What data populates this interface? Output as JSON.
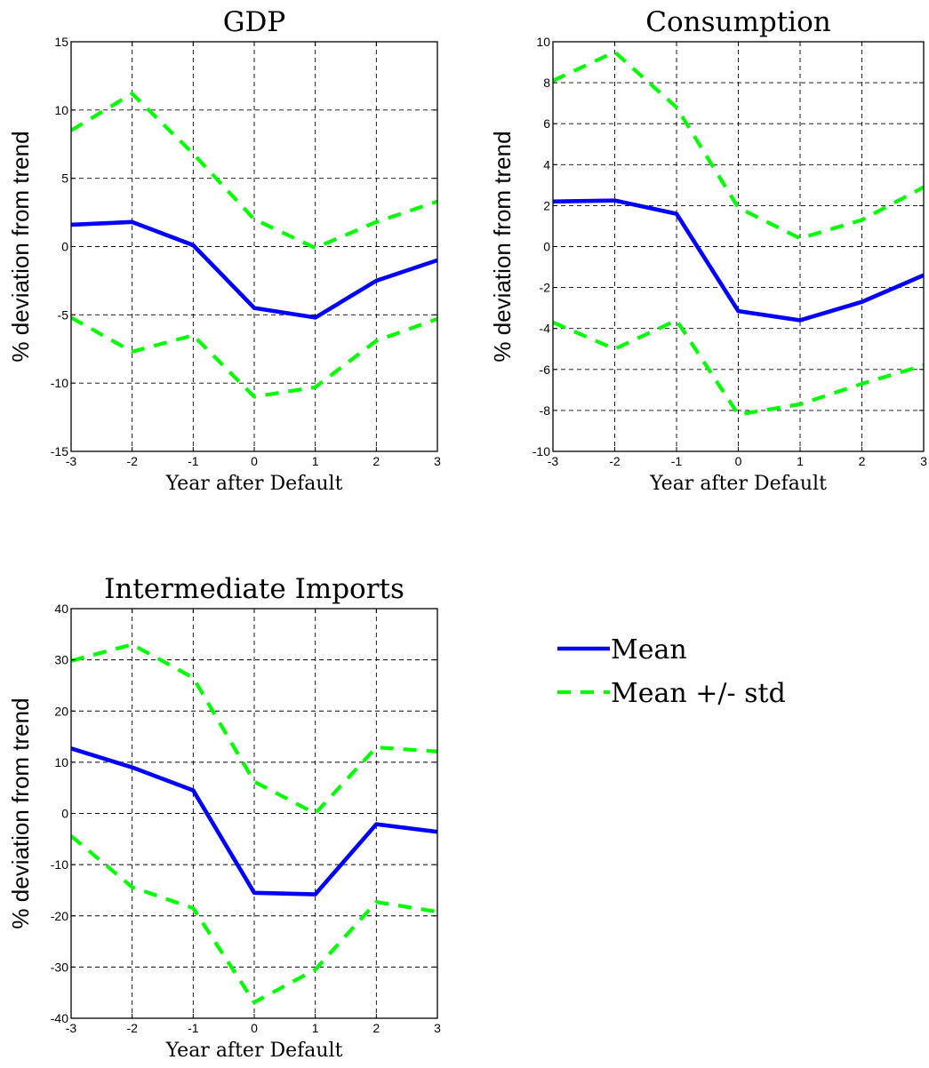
{
  "chart_data": [
    {
      "type": "line",
      "title": "GDP",
      "xlabel": "Year after Default",
      "ylabel": "% deviation from trend",
      "x": [
        -3,
        -2,
        -1,
        0,
        1,
        2,
        3
      ],
      "xlim": [
        -3,
        3
      ],
      "ylim": [
        -15,
        15
      ],
      "xticks": [
        "-3",
        "-2",
        "-1",
        "0",
        "1",
        "2",
        "3"
      ],
      "yticks": [
        "-15",
        "-10",
        "-5",
        "0",
        "5",
        "10",
        "15"
      ],
      "grid": true,
      "series": [
        {
          "name": "Mean",
          "style": "solid",
          "color": "#0000ff",
          "values": [
            1.6,
            1.8,
            0.1,
            -4.5,
            -5.2,
            -2.5,
            -1.0
          ]
        },
        {
          "name": "Mean +/- std",
          "style": "dashed",
          "color": "#00ff00",
          "values": [
            8.5,
            11.2,
            6.8,
            2.0,
            -0.1,
            1.8,
            3.3
          ]
        },
        {
          "name": "Mean +/- std",
          "style": "dashed",
          "color": "#00ff00",
          "values": [
            -5.2,
            -7.7,
            -6.5,
            -11.0,
            -10.3,
            -6.9,
            -5.3
          ]
        }
      ]
    },
    {
      "type": "line",
      "title": "Consumption",
      "xlabel": "Year after Default",
      "ylabel": "% deviation from trend",
      "x": [
        -3,
        -2,
        -1,
        0,
        1,
        2,
        3
      ],
      "xlim": [
        -3,
        3
      ],
      "ylim": [
        -10,
        10
      ],
      "xticks": [
        "-3",
        "-2",
        "-1",
        "0",
        "1",
        "2",
        "3"
      ],
      "yticks": [
        "-10",
        "-8",
        "-6",
        "-4",
        "-2",
        "0",
        "2",
        "4",
        "6",
        "8",
        "10"
      ],
      "grid": true,
      "series": [
        {
          "name": "Mean",
          "style": "solid",
          "color": "#0000ff",
          "values": [
            2.2,
            2.25,
            1.6,
            -3.15,
            -3.6,
            -2.7,
            -1.4
          ]
        },
        {
          "name": "Mean +/- std",
          "style": "dashed",
          "color": "#00ff00",
          "values": [
            8.1,
            9.5,
            6.8,
            1.9,
            0.4,
            1.3,
            2.9
          ]
        },
        {
          "name": "Mean +/- std",
          "style": "dashed",
          "color": "#00ff00",
          "values": [
            -3.7,
            -5.0,
            -3.6,
            -8.2,
            -7.7,
            -6.7,
            -5.8
          ]
        }
      ]
    },
    {
      "type": "line",
      "title": "Intermediate Imports",
      "xlabel": "Year after Default",
      "ylabel": "% deviation from trend",
      "x": [
        -3,
        -2,
        -1,
        0,
        1,
        2,
        3
      ],
      "xlim": [
        -3,
        3
      ],
      "ylim": [
        -40,
        40
      ],
      "xticks": [
        "-3",
        "-2",
        "-1",
        "0",
        "1",
        "2",
        "3"
      ],
      "yticks": [
        "-40",
        "-30",
        "-20",
        "-10",
        "0",
        "10",
        "20",
        "30",
        "40"
      ],
      "grid": true,
      "series": [
        {
          "name": "Mean",
          "style": "solid",
          "color": "#0000ff",
          "values": [
            12.7,
            9.0,
            4.5,
            -15.5,
            -15.8,
            -2.1,
            -3.6
          ]
        },
        {
          "name": "Mean +/- std",
          "style": "dashed",
          "color": "#00ff00",
          "values": [
            29.8,
            33.0,
            26.5,
            6.2,
            0.0,
            12.9,
            12.1
          ]
        },
        {
          "name": "Mean +/- std",
          "style": "dashed",
          "color": "#00ff00",
          "values": [
            -4.4,
            -14.4,
            -18.5,
            -36.9,
            -30.5,
            -17.3,
            -19.2
          ]
        }
      ]
    }
  ],
  "legend": {
    "placement": "right of bottom chart",
    "items": [
      {
        "label": "Mean",
        "style": "solid",
        "color": "#0000ff"
      },
      {
        "label": "Mean +/- std",
        "style": "dashed",
        "color": "#00ff00"
      }
    ]
  }
}
